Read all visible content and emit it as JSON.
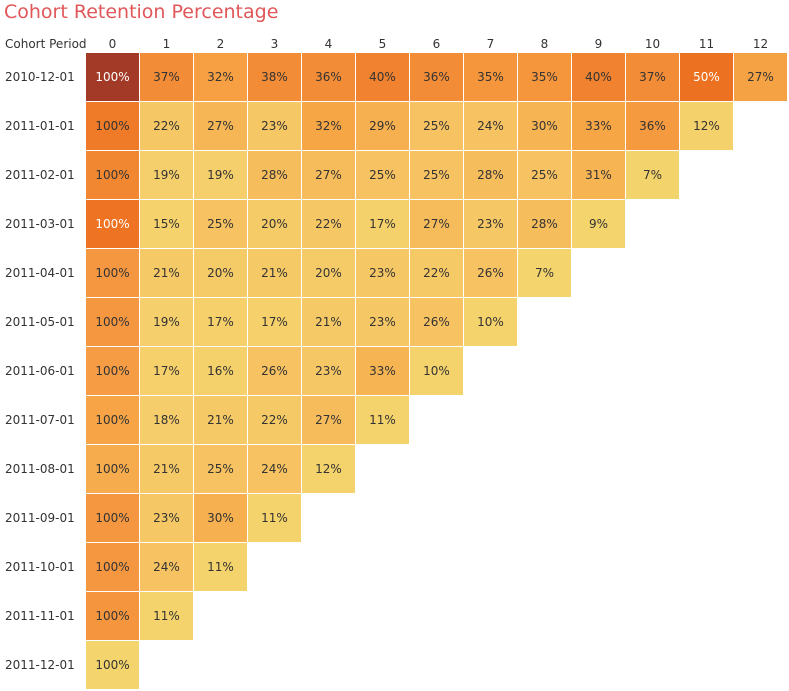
{
  "chart_data": {
    "type": "heatmap",
    "title": "Cohort Retention Percentage",
    "column_header_label": "Cohort Period",
    "columns": [
      "0",
      "1",
      "2",
      "3",
      "4",
      "5",
      "6",
      "7",
      "8",
      "9",
      "10",
      "11",
      "12"
    ],
    "rows": [
      "2010-12-01",
      "2011-01-01",
      "2011-02-01",
      "2011-03-01",
      "2011-04-01",
      "2011-05-01",
      "2011-06-01",
      "2011-07-01",
      "2011-08-01",
      "2011-09-01",
      "2011-10-01",
      "2011-11-01",
      "2011-12-01"
    ],
    "values": [
      [
        100,
        37,
        32,
        38,
        36,
        40,
        36,
        35,
        35,
        40,
        37,
        50,
        27
      ],
      [
        100,
        22,
        27,
        23,
        32,
        29,
        25,
        24,
        30,
        33,
        36,
        12
      ],
      [
        100,
        19,
        19,
        28,
        27,
        25,
        25,
        28,
        25,
        31,
        7
      ],
      [
        100,
        15,
        25,
        20,
        22,
        17,
        27,
        23,
        28,
        9
      ],
      [
        100,
        21,
        20,
        21,
        20,
        23,
        22,
        26,
        7
      ],
      [
        100,
        19,
        17,
        17,
        21,
        23,
        26,
        10
      ],
      [
        100,
        17,
        16,
        26,
        23,
        33,
        10
      ],
      [
        100,
        18,
        21,
        22,
        27,
        11
      ],
      [
        100,
        21,
        25,
        24,
        12
      ],
      [
        100,
        23,
        30,
        11
      ],
      [
        100,
        24,
        11
      ],
      [
        100,
        11
      ],
      [
        100
      ]
    ],
    "display_values": [
      [
        "100%",
        "37%",
        "32%",
        "38%",
        "36%",
        "40%",
        "36%",
        "35%",
        "35%",
        "40%",
        "37%",
        "50%",
        "27%"
      ],
      [
        "100%",
        "22%",
        "27%",
        "23%",
        "32%",
        "29%",
        "25%",
        "24%",
        "30%",
        "33%",
        "36%",
        "12%"
      ],
      [
        "100%",
        "19%",
        "19%",
        "28%",
        "27%",
        "25%",
        "25%",
        "28%",
        "25%",
        "31%",
        "7%"
      ],
      [
        "100%",
        "15%",
        "25%",
        "20%",
        "22%",
        "17%",
        "27%",
        "23%",
        "28%",
        "9%"
      ],
      [
        "100%",
        "21%",
        "20%",
        "21%",
        "20%",
        "23%",
        "22%",
        "26%",
        "7%"
      ],
      [
        "100%",
        "19%",
        "17%",
        "17%",
        "21%",
        "23%",
        "26%",
        "10%"
      ],
      [
        "100%",
        "17%",
        "16%",
        "26%",
        "23%",
        "33%",
        "10%"
      ],
      [
        "100%",
        "18%",
        "21%",
        "22%",
        "27%",
        "11%"
      ],
      [
        "100%",
        "21%",
        "25%",
        "24%",
        "12%"
      ],
      [
        "100%",
        "23%",
        "30%",
        "11%"
      ],
      [
        "100%",
        "24%",
        "11%"
      ],
      [
        "100%",
        "11%"
      ],
      [
        "100%"
      ]
    ],
    "colors": [
      [
        "#a23a27",
        "#f28c36",
        "#f6a043",
        "#f28c36",
        "#f28c36",
        "#f08230",
        "#f28c36",
        "#f5963c",
        "#f5963c",
        "#f08230",
        "#f28c36",
        "#ec7222",
        "#f5a244"
      ],
      [
        "#ef7a27",
        "#f6c765",
        "#f6b656",
        "#f6c765",
        "#f6a645",
        "#f6b050",
        "#f6c262",
        "#f6c262",
        "#f6b453",
        "#f6a645",
        "#f69a3f",
        "#f5d16b"
      ],
      [
        "#f28731",
        "#f5cf6c",
        "#f5cf6c",
        "#f6bd5d",
        "#f6bc5c",
        "#f6c262",
        "#f6c262",
        "#f6bd5d",
        "#f6c262",
        "#f6b453",
        "#f3d36c"
      ],
      [
        "#ee7322",
        "#f5d26c",
        "#f6c262",
        "#f5cb68",
        "#f6c765",
        "#f5d16b",
        "#f6bb5b",
        "#f6c765",
        "#f6bd5d",
        "#f3d46d"
      ],
      [
        "#f59741",
        "#f5c966",
        "#f5cb68",
        "#f5c966",
        "#f5cb68",
        "#f6c765",
        "#f5c966",
        "#f6c262",
        "#f3d46d"
      ],
      [
        "#f59741",
        "#f5cf6c",
        "#f5d06b",
        "#f5d06b",
        "#f5c966",
        "#f6c765",
        "#f6c262",
        "#f4d36c"
      ],
      [
        "#f59c44",
        "#f5d06b",
        "#f5d16c",
        "#f6c262",
        "#f6c765",
        "#f6b453",
        "#f4d36c"
      ],
      [
        "#f6a446",
        "#f5cd6a",
        "#f5c966",
        "#f5c966",
        "#f6bc5c",
        "#f4d36c"
      ],
      [
        "#f6ac4c",
        "#f5c966",
        "#f6c262",
        "#f6c262",
        "#f4d36c"
      ],
      [
        "#f59741",
        "#f6c765",
        "#f6b050",
        "#f4d36c"
      ],
      [
        "#f59741",
        "#f6c262",
        "#f4d36c"
      ],
      [
        "#f5963f",
        "#f4d36c"
      ],
      [
        "#f3d46d"
      ]
    ],
    "light_text_cells": [
      [
        0,
        0
      ],
      [
        0,
        11
      ],
      [
        3,
        0
      ]
    ],
    "dark_text_color": "#333333",
    "light_text_color": "#ffffff"
  }
}
